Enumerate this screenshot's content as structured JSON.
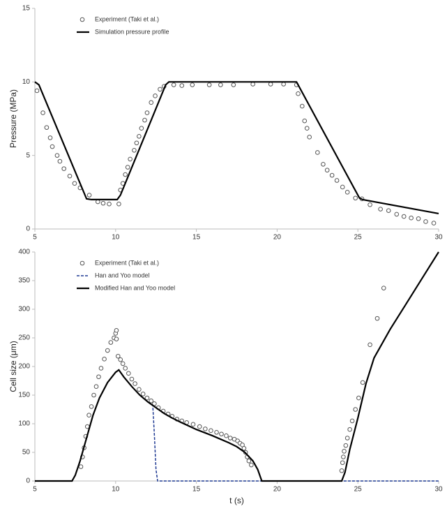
{
  "chart_data": [
    {
      "type": "line",
      "ylabel": "Pressure (MPa)",
      "xlim": [
        5,
        30
      ],
      "xticks": [
        5,
        10,
        15,
        20,
        25,
        30
      ],
      "ylim": [
        0,
        15
      ],
      "yticks": [
        0,
        5,
        10,
        15
      ],
      "grid": false,
      "legend": "upper left",
      "series": [
        {
          "name": "Experiment (Taki et al.)",
          "color": "#555555",
          "marker": "circle",
          "linestyle": "none",
          "x": [
            5.13,
            5.5,
            5.73,
            5.95,
            6.08,
            6.38,
            6.55,
            6.8,
            7.16,
            7.46,
            7.8,
            8.37,
            8.9,
            9.23,
            9.6,
            10.2,
            10.3,
            10.45,
            10.6,
            10.75,
            10.9,
            11.15,
            11.3,
            11.45,
            11.6,
            11.8,
            11.95,
            12.2,
            12.45,
            12.75,
            13.0,
            13.6,
            14.1,
            14.75,
            15.8,
            16.5,
            17.3,
            18.5,
            19.6,
            20.4,
            21.2,
            21.3,
            21.55,
            21.7,
            21.85,
            22.0,
            22.5,
            22.85,
            23.1,
            23.4,
            23.7,
            24.05,
            24.35,
            24.85,
            25.25,
            25.75,
            26.4,
            26.9,
            27.4,
            27.85,
            28.3,
            28.75,
            29.2,
            29.7
          ],
          "values": [
            9.4,
            7.9,
            6.9,
            6.2,
            5.6,
            5.0,
            4.6,
            4.1,
            3.6,
            3.1,
            2.8,
            2.3,
            1.85,
            1.75,
            1.7,
            1.7,
            2.65,
            3.1,
            3.7,
            4.2,
            4.75,
            5.35,
            5.85,
            6.3,
            6.85,
            7.4,
            7.9,
            8.6,
            9.05,
            9.5,
            9.7,
            9.8,
            9.75,
            9.8,
            9.8,
            9.8,
            9.8,
            9.85,
            9.85,
            9.85,
            9.8,
            9.2,
            8.35,
            7.35,
            6.85,
            6.25,
            5.2,
            4.4,
            4.0,
            3.65,
            3.3,
            2.85,
            2.5,
            2.1,
            2.05,
            1.65,
            1.35,
            1.25,
            1.0,
            0.85,
            0.75,
            0.7,
            0.5,
            0.4
          ]
        },
        {
          "name": "Simulation pressure profile",
          "color": "#000000",
          "marker": "none",
          "linestyle": "solid",
          "x": [
            5,
            5.25,
            8.2,
            8.5,
            10.1,
            10.3,
            13.1,
            13.3,
            21.2,
            21.4,
            25.1,
            25.3,
            30
          ],
          "values": [
            10,
            9.8,
            2.05,
            2.0,
            2.0,
            2.3,
            9.8,
            10,
            10,
            9.6,
            2.1,
            2.0,
            1.05
          ]
        }
      ]
    },
    {
      "type": "line",
      "ylabel": "Cell size (μm)",
      "xlabel": "t (s)",
      "xlim": [
        5,
        30
      ],
      "xticks": [
        5,
        10,
        15,
        20,
        25,
        30
      ],
      "ylim": [
        0,
        400
      ],
      "yticks": [
        0,
        50,
        100,
        150,
        200,
        250,
        300,
        350,
        400
      ],
      "grid": false,
      "legend": "upper left",
      "series": [
        {
          "name": "Experiment (Taki et al.)",
          "color": "#555555",
          "marker": "circle",
          "linestyle": "none",
          "x": [
            7.85,
            7.95,
            8.05,
            8.15,
            8.25,
            8.35,
            8.5,
            8.65,
            8.8,
            8.95,
            9.1,
            9.3,
            9.5,
            9.7,
            9.9,
            10.0,
            10.05,
            10.05,
            10.15,
            10.3,
            10.45,
            10.6,
            10.8,
            11.0,
            11.2,
            11.45,
            11.7,
            11.95,
            12.2,
            12.4,
            12.65,
            12.95,
            13.25,
            13.5,
            13.8,
            14.1,
            14.4,
            14.8,
            15.2,
            15.55,
            15.9,
            16.25,
            16.55,
            16.85,
            17.1,
            17.35,
            17.55,
            17.7,
            17.85,
            17.95,
            18.05,
            18.15,
            18.25,
            18.4,
            24.0,
            24.05,
            24.1,
            24.15,
            24.25,
            24.35,
            24.5,
            24.65,
            24.85,
            25.05,
            25.3,
            25.75,
            26.2,
            26.6
          ],
          "values": [
            25,
            42,
            58,
            78,
            95,
            115,
            130,
            150,
            165,
            182,
            197,
            213,
            228,
            242,
            250,
            258,
            263,
            248,
            218,
            212,
            205,
            197,
            188,
            178,
            170,
            160,
            152,
            145,
            140,
            135,
            128,
            122,
            117,
            113,
            108,
            105,
            102,
            99,
            95,
            91,
            88,
            85,
            82,
            79,
            75,
            73,
            70,
            66,
            63,
            57,
            50,
            42,
            35,
            28,
            18,
            32,
            42,
            52,
            62,
            75,
            90,
            105,
            125,
            145,
            172,
            238,
            284,
            337
          ]
        },
        {
          "name": "Han and Yoo model",
          "color": "#1f3a93",
          "marker": "none",
          "linestyle": "dashed",
          "x": [
            12.0,
            12.3,
            12.4,
            12.5,
            12.6,
            30
          ],
          "values": [
            138,
            132,
            80,
            20,
            0,
            0
          ]
        },
        {
          "name": "Modified Han and Yoo model",
          "color": "#000000",
          "marker": "none",
          "linestyle": "solid",
          "x": [
            5,
            7.3,
            7.5,
            7.8,
            8.2,
            8.6,
            9.0,
            9.5,
            10.0,
            10.2,
            10.5,
            11.0,
            11.5,
            12.0,
            12.5,
            13.0,
            13.5,
            14.0,
            15.0,
            16.0,
            17.0,
            17.5,
            18.0,
            18.5,
            18.8,
            19.05,
            24.0,
            24.2,
            24.5,
            25.0,
            25.5,
            26.0,
            27.0,
            28.0,
            29.0,
            30.0
          ],
          "values": [
            0,
            0,
            10,
            35,
            75,
            115,
            145,
            172,
            190,
            194,
            182,
            165,
            150,
            138,
            128,
            118,
            110,
            103,
            90,
            79,
            67,
            60,
            50,
            35,
            20,
            0,
            0,
            15,
            55,
            110,
            170,
            215,
            265,
            310,
            355,
            400
          ]
        }
      ]
    }
  ]
}
